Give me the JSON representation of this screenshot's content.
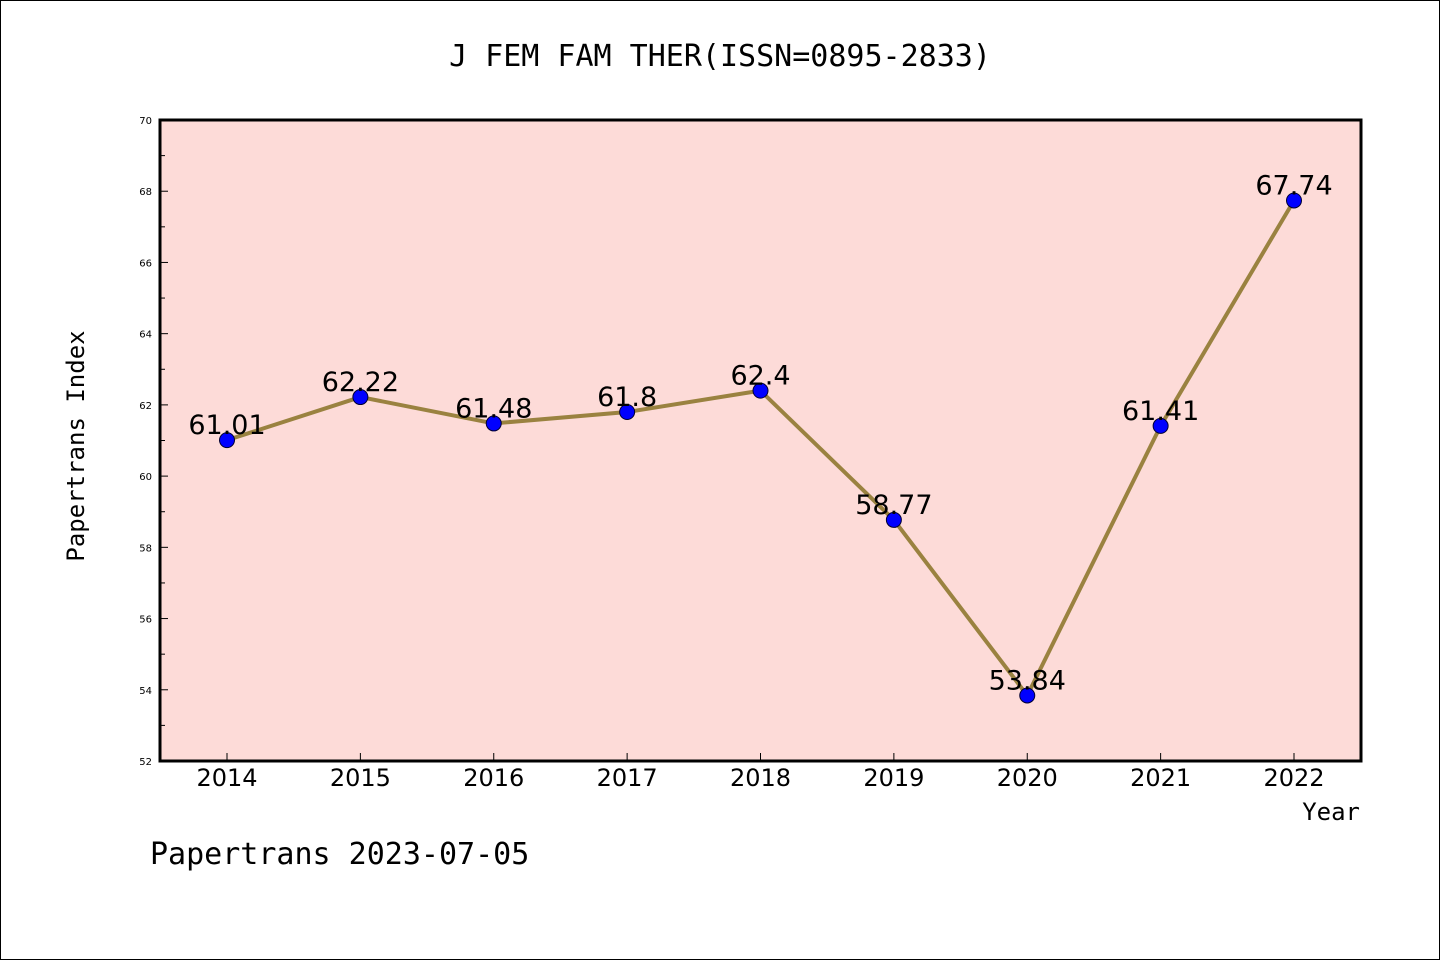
{
  "chart_data": {
    "type": "line",
    "title": "J FEM FAM THER(ISSN=0895-2833)",
    "xlabel": "Year",
    "ylabel": "Papertrans Index",
    "categories": [
      "2014",
      "2015",
      "2016",
      "2017",
      "2018",
      "2019",
      "2020",
      "2021",
      "2022"
    ],
    "values": [
      61.01,
      62.22,
      61.48,
      61.8,
      62.4,
      58.77,
      53.84,
      61.41,
      67.74
    ],
    "data_labels": [
      "61.01",
      "62.22",
      "61.48",
      "61.8",
      "62.4",
      "58.77",
      "53.84",
      "61.41",
      "67.74"
    ],
    "ylim": [
      52,
      70
    ],
    "yticks": [
      "52",
      "54",
      "56",
      "58",
      "60",
      "62",
      "64",
      "66",
      "68",
      "70"
    ],
    "grid": false,
    "legend": "none",
    "colors": {
      "plot_background": "#fddbd8",
      "line": "#9a8240",
      "marker": "#0000ff"
    }
  },
  "footer": "Papertrans 2023-07-05"
}
